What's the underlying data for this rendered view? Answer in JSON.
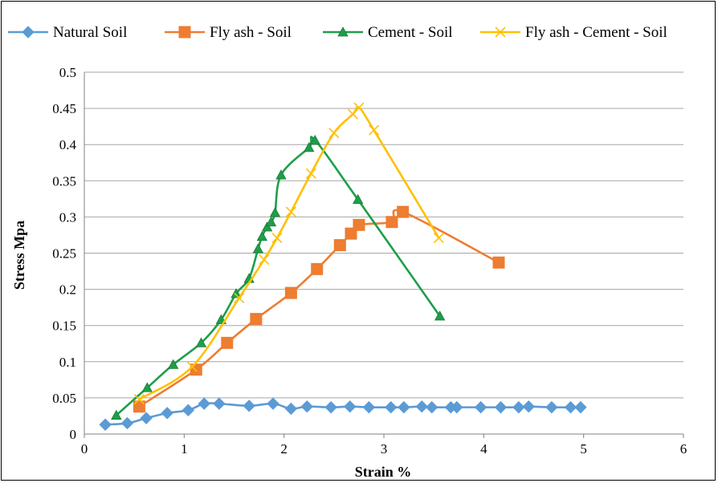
{
  "chart_data": {
    "type": "line",
    "title": "",
    "xlabel": "Strain %",
    "ylabel": "Stress Mpa",
    "xlim": [
      0,
      6
    ],
    "ylim": [
      0,
      0.5
    ],
    "xticks": [
      "0",
      "1",
      "2",
      "3",
      "4",
      "5",
      "6"
    ],
    "yticks": [
      "0",
      "0.05",
      "0.1",
      "0.15",
      "0.2",
      "0.25",
      "0.3",
      "0.35",
      "0.4",
      "0.45",
      "0.5"
    ],
    "grid": "horizontal",
    "legend": "top",
    "series": [
      {
        "name": "Natural Soil",
        "color": "#5b9bd5",
        "marker": "diamond",
        "points": [
          [
            0.21,
            0.013
          ],
          [
            0.43,
            0.015
          ],
          [
            0.62,
            0.022
          ],
          [
            0.83,
            0.029
          ],
          [
            1.04,
            0.033
          ],
          [
            1.2,
            0.042
          ],
          [
            1.35,
            0.042
          ],
          [
            1.65,
            0.039
          ],
          [
            1.89,
            0.042
          ],
          [
            2.07,
            0.035
          ],
          [
            2.23,
            0.038
          ],
          [
            2.47,
            0.037
          ],
          [
            2.66,
            0.038
          ],
          [
            2.85,
            0.037
          ],
          [
            3.07,
            0.037
          ],
          [
            3.2,
            0.037
          ],
          [
            3.38,
            0.038
          ],
          [
            3.48,
            0.037
          ],
          [
            3.67,
            0.037
          ],
          [
            3.73,
            0.037
          ],
          [
            3.97,
            0.037
          ],
          [
            4.17,
            0.037
          ],
          [
            4.35,
            0.037
          ],
          [
            4.45,
            0.038
          ],
          [
            4.68,
            0.037
          ],
          [
            4.87,
            0.037
          ],
          [
            4.97,
            0.037
          ]
        ]
      },
      {
        "name": "Fly ash - Soil",
        "color": "#ed7d31",
        "marker": "square",
        "points": [
          [
            0.55,
            0.038
          ],
          [
            1.12,
            0.089
          ],
          [
            1.43,
            0.126
          ],
          [
            1.72,
            0.159
          ],
          [
            2.07,
            0.195
          ],
          [
            2.33,
            0.228
          ],
          [
            2.56,
            0.261
          ],
          [
            2.67,
            0.277
          ],
          [
            2.75,
            0.289
          ],
          [
            3.08,
            0.293
          ],
          [
            3.19,
            0.307
          ],
          [
            4.15,
            0.237
          ]
        ]
      },
      {
        "name": "Cement - Soil",
        "color": "#1e9e4a",
        "marker": "triangle",
        "points": [
          [
            0.32,
            0.026
          ],
          [
            0.63,
            0.064
          ],
          [
            0.89,
            0.096
          ],
          [
            1.17,
            0.126
          ],
          [
            1.37,
            0.158
          ],
          [
            1.52,
            0.194
          ],
          [
            1.65,
            0.215
          ],
          [
            1.74,
            0.256
          ],
          [
            1.78,
            0.273
          ],
          [
            1.83,
            0.286
          ],
          [
            1.87,
            0.293
          ],
          [
            1.91,
            0.306
          ],
          [
            1.97,
            0.358
          ],
          [
            2.25,
            0.396
          ],
          [
            2.31,
            0.406
          ],
          [
            2.74,
            0.324
          ],
          [
            3.56,
            0.163
          ]
        ]
      },
      {
        "name": "Fly ash - Cement - Soil",
        "color": "#ffc000",
        "marker": "x",
        "points": [
          [
            0.55,
            0.048
          ],
          [
            1.08,
            0.093
          ],
          [
            1.55,
            0.188
          ],
          [
            1.8,
            0.241
          ],
          [
            1.93,
            0.271
          ],
          [
            2.07,
            0.307
          ],
          [
            2.27,
            0.36
          ],
          [
            2.5,
            0.416
          ],
          [
            2.69,
            0.442
          ],
          [
            2.75,
            0.451
          ],
          [
            2.9,
            0.42
          ],
          [
            3.55,
            0.271
          ]
        ]
      }
    ]
  }
}
